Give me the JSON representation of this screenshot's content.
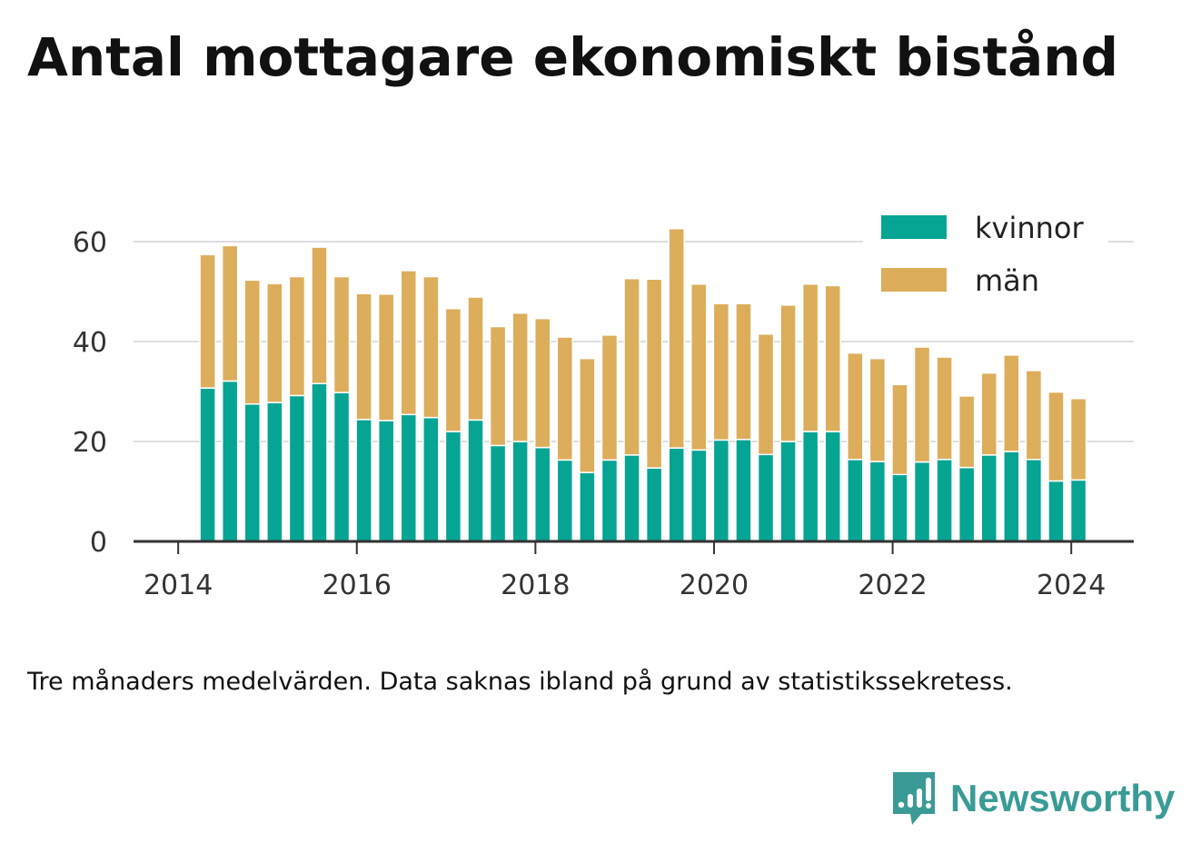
{
  "title": "Antal mottagare ekonomiskt bistånd",
  "note": "Tre månaders medelvärden. Data saknas ibland på grund av statistikssekretess.",
  "brand": {
    "name": "Newsworthy",
    "icon": "newsworthy-logo-icon",
    "color": "#3a9b96"
  },
  "chart_data": {
    "type": "bar",
    "stacked": true,
    "title": "Antal mottagare ekonomiskt bistånd",
    "xlabel": "",
    "ylabel": "",
    "x": [
      2014.33,
      2014.58,
      2014.83,
      2015.08,
      2015.33,
      2015.58,
      2015.83,
      2016.08,
      2016.33,
      2016.58,
      2016.83,
      2017.08,
      2017.33,
      2017.58,
      2017.83,
      2018.08,
      2018.33,
      2018.58,
      2018.83,
      2019.08,
      2019.33,
      2019.58,
      2019.83,
      2020.08,
      2020.33,
      2020.58,
      2020.83,
      2021.08,
      2021.33,
      2021.58,
      2021.83,
      2022.08,
      2022.33,
      2022.58,
      2022.83,
      2023.08,
      2023.33,
      2023.58,
      2023.83,
      2024.08
    ],
    "series": [
      {
        "name": "kvinnor",
        "color": "#06a493",
        "values": [
          30.7,
          32.1,
          27.5,
          27.8,
          29.2,
          31.6,
          29.8,
          24.4,
          24.2,
          25.4,
          24.8,
          22.0,
          24.3,
          19.2,
          20.0,
          18.8,
          16.3,
          13.8,
          16.3,
          17.3,
          14.7,
          18.7,
          18.3,
          20.3,
          20.4,
          17.4,
          20.0,
          22.0,
          22.0,
          16.4,
          16.0,
          13.4,
          15.9,
          16.4,
          14.8,
          17.3,
          18.0,
          16.4,
          12.1,
          12.3
        ]
      },
      {
        "name": "män",
        "color": "#dcad5a",
        "values": [
          26.7,
          27.1,
          24.8,
          23.8,
          23.8,
          27.3,
          23.2,
          25.2,
          25.3,
          28.8,
          28.2,
          24.6,
          24.6,
          23.8,
          25.7,
          25.8,
          24.6,
          22.8,
          25.0,
          35.3,
          37.8,
          43.9,
          33.2,
          27.3,
          27.2,
          24.1,
          27.3,
          29.5,
          29.2,
          21.3,
          20.6,
          18.0,
          23.0,
          20.5,
          14.3,
          16.4,
          19.3,
          17.8,
          17.8,
          16.3
        ]
      }
    ],
    "ylim": [
      0,
      68
    ],
    "yticks": [
      0,
      20,
      40,
      60
    ],
    "xlim": [
      2013.5,
      2024.7
    ],
    "xticks": [
      2014,
      2016,
      2018,
      2020,
      2022,
      2024
    ],
    "grid": "horizontal",
    "legend": "top-right"
  }
}
